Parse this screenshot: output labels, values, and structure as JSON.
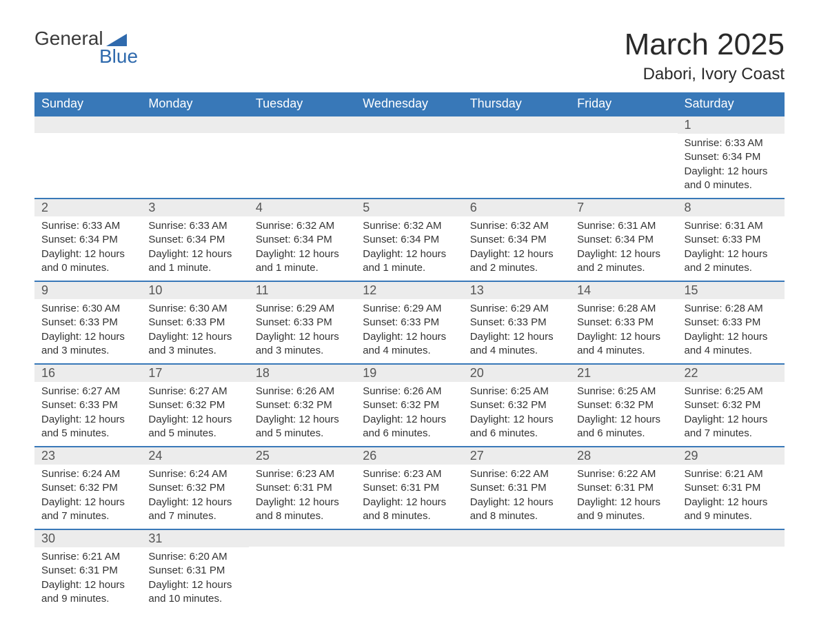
{
  "logo": {
    "textTop": "General",
    "textBottom": "Blue"
  },
  "title": {
    "month": "March 2025",
    "location": "Dabori, Ivory Coast"
  },
  "colors": {
    "headerBg": "#3878b8",
    "headerText": "#ffffff",
    "dayNumBg": "#ececec",
    "rowBorder": "#3878b8",
    "bodyText": "#333333",
    "logoGray": "#3a3a3a",
    "logoBlue": "#2f6aad",
    "pageBg": "#ffffff"
  },
  "layout": {
    "dayHeaders": [
      "Sunday",
      "Monday",
      "Tuesday",
      "Wednesday",
      "Thursday",
      "Friday",
      "Saturday"
    ],
    "weeks": 6,
    "firstDayOffset": 6
  },
  "labels": {
    "sunrise": "Sunrise:",
    "sunset": "Sunset:",
    "daylight": "Daylight:"
  },
  "days": [
    {
      "n": 1,
      "sunrise": "6:33 AM",
      "sunset": "6:34 PM",
      "daylight": "12 hours and 0 minutes."
    },
    {
      "n": 2,
      "sunrise": "6:33 AM",
      "sunset": "6:34 PM",
      "daylight": "12 hours and 0 minutes."
    },
    {
      "n": 3,
      "sunrise": "6:33 AM",
      "sunset": "6:34 PM",
      "daylight": "12 hours and 1 minute."
    },
    {
      "n": 4,
      "sunrise": "6:32 AM",
      "sunset": "6:34 PM",
      "daylight": "12 hours and 1 minute."
    },
    {
      "n": 5,
      "sunrise": "6:32 AM",
      "sunset": "6:34 PM",
      "daylight": "12 hours and 1 minute."
    },
    {
      "n": 6,
      "sunrise": "6:32 AM",
      "sunset": "6:34 PM",
      "daylight": "12 hours and 2 minutes."
    },
    {
      "n": 7,
      "sunrise": "6:31 AM",
      "sunset": "6:34 PM",
      "daylight": "12 hours and 2 minutes."
    },
    {
      "n": 8,
      "sunrise": "6:31 AM",
      "sunset": "6:33 PM",
      "daylight": "12 hours and 2 minutes."
    },
    {
      "n": 9,
      "sunrise": "6:30 AM",
      "sunset": "6:33 PM",
      "daylight": "12 hours and 3 minutes."
    },
    {
      "n": 10,
      "sunrise": "6:30 AM",
      "sunset": "6:33 PM",
      "daylight": "12 hours and 3 minutes."
    },
    {
      "n": 11,
      "sunrise": "6:29 AM",
      "sunset": "6:33 PM",
      "daylight": "12 hours and 3 minutes."
    },
    {
      "n": 12,
      "sunrise": "6:29 AM",
      "sunset": "6:33 PM",
      "daylight": "12 hours and 4 minutes."
    },
    {
      "n": 13,
      "sunrise": "6:29 AM",
      "sunset": "6:33 PM",
      "daylight": "12 hours and 4 minutes."
    },
    {
      "n": 14,
      "sunrise": "6:28 AM",
      "sunset": "6:33 PM",
      "daylight": "12 hours and 4 minutes."
    },
    {
      "n": 15,
      "sunrise": "6:28 AM",
      "sunset": "6:33 PM",
      "daylight": "12 hours and 4 minutes."
    },
    {
      "n": 16,
      "sunrise": "6:27 AM",
      "sunset": "6:33 PM",
      "daylight": "12 hours and 5 minutes."
    },
    {
      "n": 17,
      "sunrise": "6:27 AM",
      "sunset": "6:32 PM",
      "daylight": "12 hours and 5 minutes."
    },
    {
      "n": 18,
      "sunrise": "6:26 AM",
      "sunset": "6:32 PM",
      "daylight": "12 hours and 5 minutes."
    },
    {
      "n": 19,
      "sunrise": "6:26 AM",
      "sunset": "6:32 PM",
      "daylight": "12 hours and 6 minutes."
    },
    {
      "n": 20,
      "sunrise": "6:25 AM",
      "sunset": "6:32 PM",
      "daylight": "12 hours and 6 minutes."
    },
    {
      "n": 21,
      "sunrise": "6:25 AM",
      "sunset": "6:32 PM",
      "daylight": "12 hours and 6 minutes."
    },
    {
      "n": 22,
      "sunrise": "6:25 AM",
      "sunset": "6:32 PM",
      "daylight": "12 hours and 7 minutes."
    },
    {
      "n": 23,
      "sunrise": "6:24 AM",
      "sunset": "6:32 PM",
      "daylight": "12 hours and 7 minutes."
    },
    {
      "n": 24,
      "sunrise": "6:24 AM",
      "sunset": "6:32 PM",
      "daylight": "12 hours and 7 minutes."
    },
    {
      "n": 25,
      "sunrise": "6:23 AM",
      "sunset": "6:31 PM",
      "daylight": "12 hours and 8 minutes."
    },
    {
      "n": 26,
      "sunrise": "6:23 AM",
      "sunset": "6:31 PM",
      "daylight": "12 hours and 8 minutes."
    },
    {
      "n": 27,
      "sunrise": "6:22 AM",
      "sunset": "6:31 PM",
      "daylight": "12 hours and 8 minutes."
    },
    {
      "n": 28,
      "sunrise": "6:22 AM",
      "sunset": "6:31 PM",
      "daylight": "12 hours and 9 minutes."
    },
    {
      "n": 29,
      "sunrise": "6:21 AM",
      "sunset": "6:31 PM",
      "daylight": "12 hours and 9 minutes."
    },
    {
      "n": 30,
      "sunrise": "6:21 AM",
      "sunset": "6:31 PM",
      "daylight": "12 hours and 9 minutes."
    },
    {
      "n": 31,
      "sunrise": "6:20 AM",
      "sunset": "6:31 PM",
      "daylight": "12 hours and 10 minutes."
    }
  ]
}
